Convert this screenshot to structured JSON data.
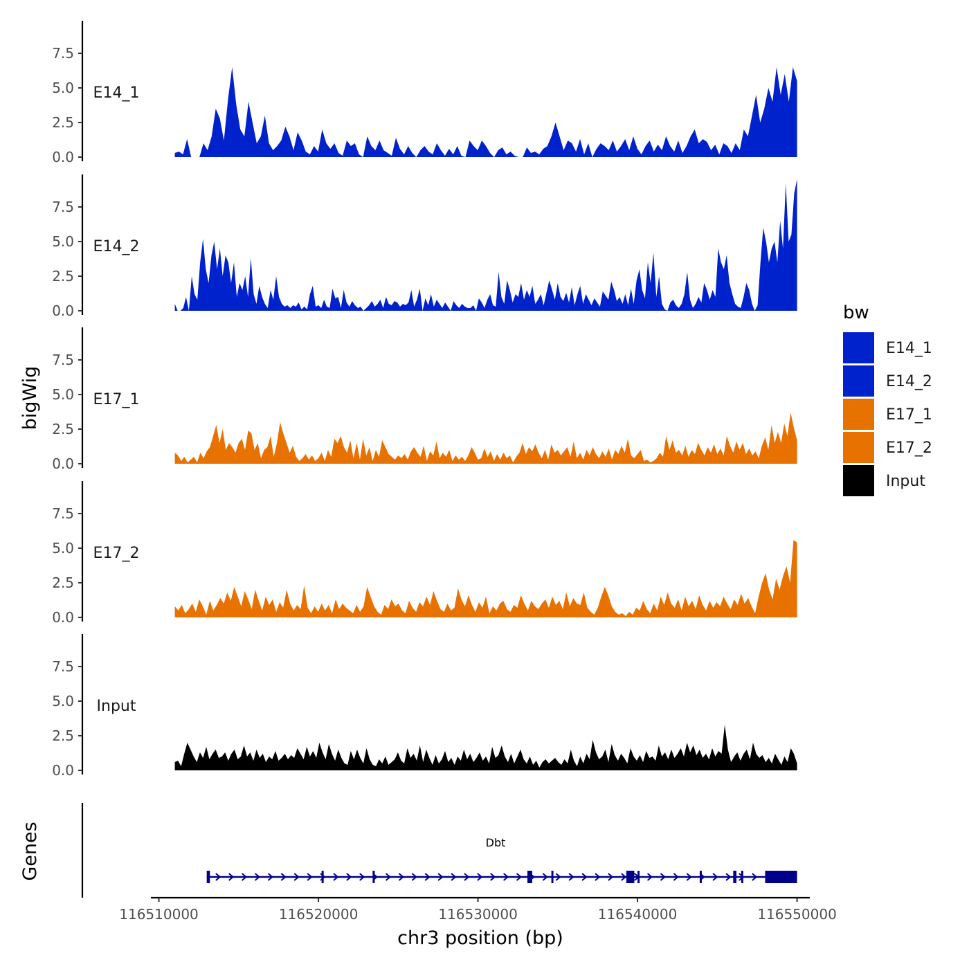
{
  "chart_data": {
    "type": "area",
    "ylabel": "bigWig",
    "xlabel": "chr3 position (bp)",
    "xlim": [
      116509500,
      116550800
    ],
    "ylim": [
      0,
      10
    ],
    "y_ticks": [
      0,
      2.5,
      5,
      7.5
    ],
    "y_tick_labels": [
      "0.0",
      "2.5",
      "5.0",
      "7.5"
    ],
    "x_ticks": [
      116510000,
      116520000,
      116530000,
      116540000,
      116550000
    ],
    "x_tick_labels": [
      "116510000",
      "116520000",
      "116530000",
      "116540000",
      "116550000"
    ],
    "series": [
      {
        "name": "E14_1",
        "color": "#0022CC",
        "x_start": 116511000,
        "x_end": 116550000,
        "y": [
          0.3,
          0.4,
          0.2,
          1.3,
          0,
          0,
          0,
          1.0,
          0.5,
          1.5,
          3.5,
          2.8,
          1.2,
          4.2,
          6.5,
          3.8,
          2.0,
          1.5,
          4.0,
          2.5,
          1.0,
          1.5,
          3.0,
          1.0,
          0.5,
          0.8,
          1.2,
          2.2,
          1.5,
          0.5,
          1.8,
          1.2,
          0.4,
          0.2,
          0.8,
          0.4,
          2.0,
          1.0,
          0.6,
          1.0,
          0.3,
          0.1,
          1.2,
          0.8,
          1.0,
          0.2,
          0,
          1.5,
          0.8,
          0.5,
          1.2,
          0.5,
          0.3,
          0.1,
          1.4,
          0.6,
          0.2,
          0.8,
          0.3,
          0,
          0.5,
          0.8,
          0.4,
          0.2,
          1.0,
          0.5,
          0.1,
          0.6,
          0.2,
          0.8,
          0.1,
          0,
          1.2,
          0.8,
          0.5,
          1.2,
          0.8,
          0.3,
          0,
          0.5,
          0.7,
          0.2,
          0.4,
          0.1,
          0,
          0,
          0.7,
          0.3,
          0.4,
          0.2,
          0.6,
          0.8,
          1.5,
          2.5,
          1.5,
          0.5,
          1.2,
          1.0,
          0.4,
          1.3,
          0.2,
          1.0,
          0,
          0.6,
          1.0,
          0.8,
          0.5,
          1.2,
          0.4,
          0.8,
          1.3,
          0.5,
          1.5,
          0.6,
          0.2,
          0.8,
          1.2,
          0.4,
          0.9,
          0.5,
          1.5,
          0.8,
          0.4,
          1.2,
          0.3,
          0.8,
          1.5,
          2.0,
          1.0,
          1.3,
          1.1,
          0.5,
          0.9,
          0.2,
          1.0,
          0.8,
          0.3,
          1.0,
          0.5,
          2.0,
          1.5,
          3.0,
          4.5,
          2.5,
          3.5,
          5.0,
          4.0,
          6.5,
          4.5,
          6.0,
          4.0,
          6.5,
          5.5
        ]
      },
      {
        "name": "E14_2",
        "color": "#0022CC",
        "x_start": 116511000,
        "x_end": 116550000,
        "y": [
          0.5,
          0,
          0,
          0.2,
          1.0,
          0,
          2.5,
          1.2,
          0.8,
          3.5,
          5.2,
          3.0,
          2.0,
          4.0,
          5.0,
          3.0,
          4.5,
          2.5,
          4.0,
          3.5,
          2.0,
          3.5,
          1.0,
          2.0,
          1.5,
          2.5,
          1.0,
          3.8,
          1.2,
          0.5,
          1.8,
          1.0,
          0.5,
          0.2,
          1.5,
          0.8,
          2.5,
          1.0,
          0.5,
          0.3,
          0.4,
          0.2,
          0.4,
          0.3,
          0.6,
          0.1,
          0.3,
          0.1,
          1.2,
          1.8,
          0.3,
          0.4,
          0.2,
          0.8,
          0.3,
          0.2,
          1.6,
          0.9,
          1.0,
          0.2,
          1.5,
          0.6,
          0.3,
          0.7,
          0.4,
          0.2,
          0.3,
          0,
          0.2,
          0.4,
          0.7,
          0.3,
          0.5,
          0.8,
          0.2,
          1.0,
          0.5,
          0.4,
          0.7,
          0.6,
          0.3,
          0.5,
          0.4,
          0.6,
          1.5,
          0.3,
          0.8,
          1.6,
          0,
          0.9,
          0.4,
          1.2,
          0.3,
          0.8,
          0.5,
          0.2,
          0.6,
          0.3,
          0,
          0.7,
          0.4,
          0.2,
          0.5,
          0.3,
          0.2,
          0.2,
          0.4,
          0,
          0.9,
          0.6,
          0.2,
          0.8,
          1.2,
          0.4,
          0.3,
          2.8,
          1.0,
          0.5,
          2.2,
          1.5,
          0.6,
          1.2,
          1.0,
          2.0,
          0.8,
          1.5,
          1.0,
          1.8,
          0.5,
          0.8,
          1.2,
          0.4,
          1.3,
          2.2,
          1.5,
          0.8,
          2.0,
          1.0,
          0.7,
          1.3,
          0.6,
          1.7,
          0.4,
          1.2,
          1.8,
          0.5,
          1.2,
          0.8,
          0.4,
          0.9,
          0.6,
          0.3,
          1.4,
          1.1,
          0.8,
          2.1,
          1.5,
          0.7,
          1.0,
          0.5,
          1.2,
          0.4,
          1.6,
          0.5,
          2.2,
          3.0,
          1.5,
          0.9,
          3.5,
          2.0,
          4.2,
          1.0,
          2.5,
          0.5,
          0.1,
          0,
          0.6,
          0.8,
          0.4,
          0.2,
          0.5,
          1.2,
          2.8,
          0.8,
          0.2,
          0.5,
          1.0,
          0.6,
          2.0,
          1.5,
          0.8,
          1.5,
          1.0,
          4.5,
          3.5,
          3.0,
          4.0,
          2.0,
          1.2,
          0.5,
          0.3,
          0.2,
          1.0,
          2.0,
          1.5,
          0.5,
          0,
          0.4,
          3.5,
          6.0,
          5.0,
          3.5,
          4.5,
          5.0,
          3.5,
          6.5,
          4.5,
          9.2,
          5.0,
          5.5,
          8.5,
          9.5
        ]
      },
      {
        "name": "E17_1",
        "color": "#E87200",
        "x_start": 116511000,
        "x_end": 116550000,
        "y": [
          0.8,
          0.6,
          0.2,
          0.5,
          0.1,
          0.3,
          0.5,
          0.1,
          0.8,
          0.4,
          0.9,
          1.2,
          2.0,
          2.8,
          1.5,
          2.5,
          1.0,
          1.5,
          1.2,
          0.8,
          1.5,
          1.8,
          1.0,
          2.4,
          2.2,
          1.0,
          1.5,
          0.4,
          1.0,
          1.2,
          2.0,
          0.5,
          1.5,
          3.0,
          2.2,
          1.5,
          0.8,
          1.3,
          0.5,
          0.2,
          0.4,
          0.7,
          0.3,
          0.6,
          0.2,
          0.4,
          0.8,
          0.2,
          1.0,
          0.5,
          1.8,
          1.5,
          2.0,
          1.2,
          0.8,
          1.7,
          0.4,
          1.5,
          0.3,
          1.8,
          0.6,
          1.2,
          0.2,
          1.0,
          0.5,
          1.7,
          1.2,
          0.7,
          0.5,
          0.3,
          0.6,
          0.4,
          0.7,
          0.3,
          0.9,
          1.2,
          0.8,
          0.5,
          1.3,
          0.2,
          0.9,
          0.6,
          1.6,
          0.4,
          0.8,
          0.5,
          1.0,
          0.2,
          0.6,
          0.3,
          0.5,
          0.2,
          0.6,
          1.2,
          0.8,
          0.3,
          0.4,
          1.1,
          0.5,
          0.9,
          0.2,
          0.7,
          0.3,
          0.8,
          0.4,
          0.6,
          0.1,
          0.5,
          0.8,
          1.5,
          0.7,
          1.2,
          0.9,
          1.4,
          0.8,
          0.4,
          1.0,
          0.3,
          1.4,
          0.8,
          1.0,
          0.6,
          0.9,
          1.2,
          0.5,
          1.6,
          0.4,
          0.8,
          0.3,
          1.0,
          0.6,
          1.2,
          0.7,
          0.4,
          0.9,
          0.5,
          1.1,
          0.3,
          1.0,
          0.7,
          1.3,
          0.8,
          1.8,
          0.6,
          0.4,
          0.7,
          1.0,
          0.2,
          0.3,
          0.1,
          0.2,
          0.4,
          0.8,
          0.5,
          2.0,
          1.0,
          1.7,
          0.8,
          1.0,
          0.6,
          1.3,
          0.5,
          1.0,
          0.7,
          1.5,
          1.0,
          0.6,
          1.2,
          0.8,
          1.4,
          0.7,
          1.1,
          0.6,
          2.0,
          1.3,
          0.8,
          1.6,
          1.0,
          1.5,
          0.7,
          1.1,
          0.6,
          0.9,
          0.4,
          1.3,
          1.9,
          1.0,
          2.8,
          1.5,
          2.3,
          1.5,
          2.9,
          2.0,
          3.7,
          2.6,
          1.7
        ]
      },
      {
        "name": "E17_2",
        "color": "#E87200",
        "x_start": 116511000,
        "x_end": 116550000,
        "y": [
          0.8,
          0.5,
          0.9,
          0.3,
          0.6,
          1.0,
          0.4,
          1.3,
          0.8,
          0.2,
          1.2,
          0.5,
          0.9,
          1.4,
          1.0,
          1.8,
          1.2,
          2.2,
          1.5,
          0.8,
          1.9,
          1.3,
          0.6,
          2.0,
          1.2,
          0.5,
          1.5,
          0.9,
          1.3,
          0.4,
          1.1,
          0.7,
          2.0,
          1.0,
          0.5,
          0.9,
          0.6,
          2.3,
          0.7,
          0.3,
          0.8,
          0.4,
          1.0,
          0.5,
          0.9,
          0.3,
          1.3,
          0.6,
          1.0,
          0.7,
          0.5,
          0.3,
          0.9,
          0.4,
          0.8,
          2.2,
          1.5,
          0.8,
          0.4,
          0.2,
          0.9,
          0.6,
          1.3,
          0.8,
          1.0,
          0.5,
          0.3,
          1.2,
          0.7,
          0.4,
          1.1,
          0.8,
          1.5,
          0.9,
          1.9,
          1.2,
          0.6,
          0.4,
          1.0,
          0.5,
          0.7,
          2.1,
          1.3,
          0.8,
          1.6,
          0.9,
          0.4,
          1.1,
          0.7,
          1.5,
          0.3,
          0.8,
          0.5,
          1.0,
          1.2,
          0.6,
          0.4,
          0.9,
          0.7,
          1.6,
          1.0,
          0.5,
          1.2,
          0.8,
          0.6,
          1.0,
          1.3,
          0.7,
          1.5,
          0.9,
          1.2,
          0.6,
          1.8,
          0.8,
          1.4,
          1.0,
          0.9,
          1.8,
          0.7,
          0.4,
          0.2,
          0.7,
          1.5,
          2.2,
          1.6,
          0.8,
          0.4,
          0.2,
          0.3,
          0.1,
          0.4,
          0.2,
          0.7,
          0.5,
          1.2,
          0.6,
          0.3,
          1.0,
          0.5,
          1.5,
          0.9,
          1.8,
          1.0,
          0.7,
          1.3,
          0.5,
          1.5,
          0.8,
          1.2,
          0.6,
          1.6,
          0.9,
          0.5,
          1.2,
          0.7,
          1.1,
          0.8,
          1.5,
          1.0,
          0.6,
          1.3,
          0.9,
          1.7,
          1.0,
          1.4,
          0.8,
          0.3,
          1.5,
          2.5,
          3.2,
          2.0,
          1.3,
          2.8,
          2.0,
          3.0,
          3.7,
          2.5,
          5.6,
          5.4
        ]
      },
      {
        "name": "Input",
        "color": "#000000",
        "x_start": 116511000,
        "x_end": 116550000,
        "y": [
          0.6,
          0.7,
          0.3,
          1.2,
          2.0,
          1.5,
          1.0,
          0.6,
          1.3,
          0.9,
          1.7,
          0.8,
          1.2,
          1.5,
          0.9,
          1.0,
          1.3,
          0.7,
          1.2,
          1.5,
          0.8,
          1.0,
          1.8,
          1.0,
          1.3,
          0.7,
          1.5,
          0.9,
          1.2,
          0.6,
          1.0,
          0.8,
          1.4,
          0.7,
          0.9,
          1.2,
          0.8,
          1.1,
          0.9,
          1.6,
          1.2,
          0.8,
          1.7,
          1.0,
          1.4,
          0.9,
          2.0,
          1.3,
          0.8,
          1.9,
          1.2,
          0.7,
          1.5,
          0.9,
          0.5,
          0.4,
          1.4,
          0.8,
          1.5,
          0.9,
          0.5,
          1.6,
          0.8,
          0.4,
          0.3,
          0.8,
          0.5,
          1.0,
          0.4,
          0.6,
          0.8,
          1.3,
          0.7,
          0.5,
          1.6,
          0.9,
          1.2,
          0.7,
          1.8,
          0.6,
          1.5,
          0.9,
          0.4,
          1.1,
          0.5,
          0.8,
          1.4,
          0.6,
          0.9,
          0.4,
          1.0,
          0.7,
          1.5,
          0.8,
          1.2,
          0.6,
          0.9,
          1.3,
          0.7,
          1.0,
          0.5,
          1.7,
          0.9,
          1.1,
          1.8,
          1.0,
          0.6,
          1.2,
          0.5,
          1.0,
          1.5,
          0.8,
          0.5,
          1.0,
          0.4,
          0.7,
          0.2,
          0.6,
          0.8,
          0.5,
          0.7,
          0.9,
          0.6,
          0.4,
          0.8,
          0.5,
          1.5,
          0.7,
          0.3,
          1.0,
          0.5,
          1.2,
          0.8,
          2.2,
          1.3,
          0.8,
          1.0,
          1.5,
          0.6,
          1.9,
          1.1,
          0.7,
          1.2,
          0.9,
          0.5,
          1.6,
          1.0,
          0.7,
          1.1,
          0.6,
          1.4,
          0.9,
          1.0,
          0.7,
          1.8,
          1.0,
          1.3,
          0.8,
          1.5,
          0.9,
          1.2,
          1.6,
          1.0,
          2.0,
          1.3,
          1.8,
          1.1,
          1.5,
          0.9,
          1.2,
          0.8,
          1.6,
          1.0,
          1.4,
          1.2,
          3.3,
          1.5,
          0.6,
          1.0,
          1.3,
          0.7,
          1.2,
          1.5,
          0.8,
          2.0,
          1.2,
          0.9,
          1.1,
          0.6,
          0.9,
          0.5,
          1.2,
          0.8,
          0.4,
          1.0,
          0.6,
          1.6,
          1.2,
          0.5
        ]
      }
    ],
    "genes_track": {
      "label": "Genes",
      "gene_name": "Dbt",
      "start": 116513000,
      "end": 116550000,
      "strand": "+",
      "exons": [
        [
          116513000,
          116513200
        ],
        [
          116520200,
          116520300
        ],
        [
          116523400,
          116523500
        ],
        [
          116533100,
          116533400
        ],
        [
          116534600,
          116534700
        ],
        [
          116539300,
          116539800
        ],
        [
          116540000,
          116540100
        ],
        [
          116543900,
          116544000
        ],
        [
          116546000,
          116546200
        ],
        [
          116546500,
          116546600
        ],
        [
          116548000,
          116550000
        ]
      ]
    },
    "legend": {
      "title": "bw",
      "placement": "right",
      "entries": [
        {
          "label": "E14_1",
          "color": "#0022CC"
        },
        {
          "label": "E14_2",
          "color": "#0022CC"
        },
        {
          "label": "E17_1",
          "color": "#E87200"
        },
        {
          "label": "E17_2",
          "color": "#E87200"
        },
        {
          "label": "Input",
          "color": "#000000"
        }
      ]
    }
  }
}
